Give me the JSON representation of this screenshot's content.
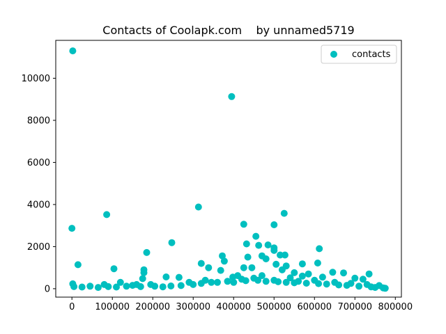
{
  "chart_data": {
    "type": "scatter",
    "title": "Contacts of Coolapk.com    by unnamed5719",
    "xlabel": "",
    "ylabel": "",
    "xlim": [
      -40000,
      815000
    ],
    "ylim": [
      -400,
      11800
    ],
    "x_ticks": [
      0,
      100000,
      200000,
      300000,
      400000,
      500000,
      600000,
      700000,
      800000
    ],
    "x_tick_labels": [
      "0",
      "100000",
      "200000",
      "300000",
      "400000",
      "500000",
      "600000",
      "700000",
      "800000"
    ],
    "y_ticks": [
      0,
      2000,
      4000,
      6000,
      8000,
      10000
    ],
    "y_tick_labels": [
      "0",
      "2000",
      "4000",
      "6000",
      "8000",
      "10000"
    ],
    "grid": false,
    "legend_position": "top-right",
    "marker_color": "#00bfbf",
    "series": [
      {
        "name": "contacts",
        "color": "#00bfbf",
        "points": [
          [
            2000,
            11300
          ],
          [
            395000,
            9130
          ],
          [
            0,
            2870
          ],
          [
            86000,
            3520
          ],
          [
            313000,
            3880
          ],
          [
            525000,
            3580
          ],
          [
            425000,
            3060
          ],
          [
            500000,
            3040
          ],
          [
            455000,
            2490
          ],
          [
            247000,
            2190
          ],
          [
            432000,
            2130
          ],
          [
            462000,
            2060
          ],
          [
            485000,
            2080
          ],
          [
            500000,
            1940
          ],
          [
            612000,
            1900
          ],
          [
            185000,
            1720
          ],
          [
            500000,
            1820
          ],
          [
            470000,
            1560
          ],
          [
            515000,
            1600
          ],
          [
            527000,
            1600
          ],
          [
            372000,
            1560
          ],
          [
            435000,
            1500
          ],
          [
            480000,
            1420
          ],
          [
            377000,
            1310
          ],
          [
            320000,
            1200
          ],
          [
            15000,
            1140
          ],
          [
            505000,
            1160
          ],
          [
            530000,
            1080
          ],
          [
            570000,
            1180
          ],
          [
            608000,
            1220
          ],
          [
            104000,
            950
          ],
          [
            178000,
            900
          ],
          [
            338000,
            1000
          ],
          [
            425000,
            1000
          ],
          [
            445000,
            1000
          ],
          [
            368000,
            870
          ],
          [
            520000,
            900
          ],
          [
            178000,
            760
          ],
          [
            550000,
            760
          ],
          [
            585000,
            700
          ],
          [
            645000,
            780
          ],
          [
            672000,
            750
          ],
          [
            735000,
            700
          ],
          [
            233000,
            560
          ],
          [
            265000,
            540
          ],
          [
            175000,
            480
          ],
          [
            570000,
            600
          ],
          [
            620000,
            550
          ],
          [
            700000,
            500
          ],
          [
            398000,
            550
          ],
          [
            410000,
            620
          ],
          [
            470000,
            620
          ],
          [
            540000,
            520
          ],
          [
            720000,
            450
          ],
          [
            2000,
            230
          ],
          [
            80000,
            200
          ],
          [
            120000,
            300
          ],
          [
            160000,
            200
          ],
          [
            195000,
            200
          ],
          [
            290000,
            300
          ],
          [
            330000,
            400
          ],
          [
            360000,
            300
          ],
          [
            420000,
            450
          ],
          [
            450000,
            500
          ],
          [
            500000,
            400
          ],
          [
            560000,
            350
          ],
          [
            600000,
            400
          ],
          [
            650000,
            300
          ],
          [
            690000,
            250
          ],
          [
            730000,
            200
          ],
          [
            760000,
            150
          ],
          [
            770000,
            40
          ],
          [
            775000,
            20
          ],
          [
            5000,
            100
          ],
          [
            25000,
            80
          ],
          [
            45000,
            120
          ],
          [
            65000,
            60
          ],
          [
            90000,
            100
          ],
          [
            110000,
            80
          ],
          [
            135000,
            120
          ],
          [
            150000,
            160
          ],
          [
            170000,
            100
          ],
          [
            205000,
            120
          ],
          [
            225000,
            90
          ],
          [
            245000,
            130
          ],
          [
            270000,
            150
          ],
          [
            300000,
            200
          ],
          [
            320000,
            250
          ],
          [
            345000,
            300
          ],
          [
            385000,
            350
          ],
          [
            400000,
            300
          ],
          [
            430000,
            380
          ],
          [
            460000,
            400
          ],
          [
            480000,
            350
          ],
          [
            510000,
            330
          ],
          [
            530000,
            300
          ],
          [
            550000,
            280
          ],
          [
            580000,
            260
          ],
          [
            610000,
            240
          ],
          [
            630000,
            220
          ],
          [
            660000,
            180
          ],
          [
            680000,
            160
          ],
          [
            710000,
            120
          ],
          [
            740000,
            90
          ],
          [
            750000,
            60
          ]
        ]
      }
    ]
  }
}
